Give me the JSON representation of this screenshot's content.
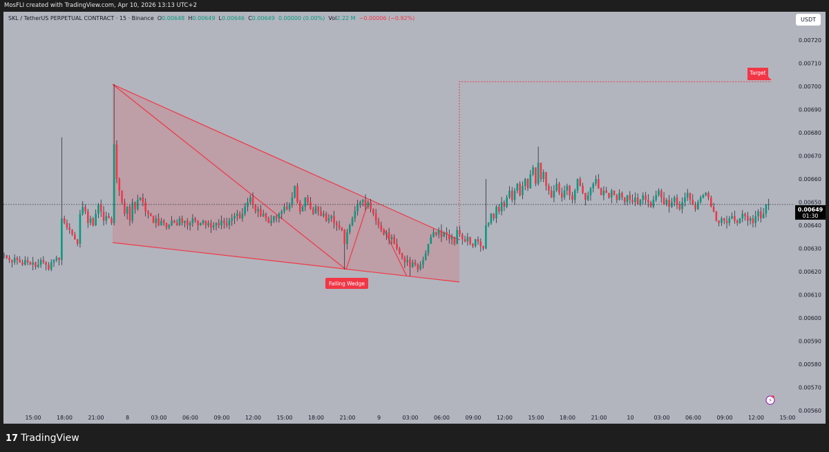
{
  "header": {
    "attribution": "MosFLI created with TradingView.com, Apr 10, 2026 13:13 UTC+2"
  },
  "legend": {
    "symbol": "SKL / TetherUS PERPETUAL CONTRACT · 15 · Binance",
    "o_label": "O",
    "o": "0.00648",
    "h_label": "H",
    "h": "0.00649",
    "l_label": "L",
    "l": "0.00646",
    "c_label": "C",
    "c": "0.00649",
    "change": "0.00000 (0.00%)",
    "vol_label": "Vol",
    "vol": "2.22 M",
    "change2": "−0.00006 (−0.92%)"
  },
  "price_axis": {
    "unit": "USDT",
    "current_price": "0.00649",
    "countdown": "01:30"
  },
  "footer": {
    "brand": "TradingView"
  },
  "colors": {
    "up": "#089981",
    "down": "#f23645",
    "drawing": "#f23645",
    "background": "#b2b5be"
  },
  "icons": {
    "alert": "lightning-alert-icon",
    "logo": "tradingview-logo-icon"
  },
  "chart_data": {
    "type": "candlestick",
    "interval": "15",
    "y_ticks": [
      "0.00720",
      "0.00710",
      "0.00700",
      "0.00690",
      "0.00680",
      "0.00670",
      "0.00660",
      "0.00650",
      "0.00640",
      "0.00630",
      "0.00620",
      "0.00610",
      "0.00600",
      "0.00590",
      "0.00580",
      "0.00570",
      "0.00560"
    ],
    "ylim": [
      0.0056,
      0.0072
    ],
    "x_ticks": [
      "15:00",
      "18:00",
      "21:00",
      "8",
      "03:00",
      "06:00",
      "09:00",
      "12:00",
      "15:00",
      "18:00",
      "21:00",
      "9",
      "03:00",
      "06:00",
      "09:00",
      "12:00",
      "15:00",
      "18:00",
      "21:00",
      "10",
      "03:00",
      "06:00",
      "09:00",
      "12:00",
      "15:00"
    ],
    "closes": [
      0.00627,
      0.00626,
      0.00625,
      0.00624,
      0.00626,
      0.00625,
      0.00624,
      0.00623,
      0.00625,
      0.00624,
      0.00623,
      0.00624,
      0.00622,
      0.00623,
      0.00625,
      0.00624,
      0.00623,
      0.00621,
      0.00624,
      0.00625,
      0.00626,
      0.00625,
      0.00643,
      0.00641,
      0.00639,
      0.00638,
      0.00636,
      0.00634,
      0.00632,
      0.00645,
      0.00648,
      0.00646,
      0.00641,
      0.00643,
      0.0064,
      0.00645,
      0.00649,
      0.00646,
      0.00642,
      0.00644,
      0.00643,
      0.00641,
      0.00675,
      0.0066,
      0.00655,
      0.0065,
      0.00645,
      0.00648,
      0.00642,
      0.0065,
      0.00647,
      0.00651,
      0.00652,
      0.0065,
      0.00646,
      0.00645,
      0.00644,
      0.00641,
      0.00643,
      0.0064,
      0.00642,
      0.00641,
      0.00639,
      0.0064,
      0.00642,
      0.00641,
      0.0064,
      0.00643,
      0.00641,
      0.00642,
      0.0064,
      0.00641,
      0.00643,
      0.00642,
      0.0064,
      0.00641,
      0.00642,
      0.0064,
      0.00641,
      0.00639,
      0.0064,
      0.00641,
      0.0064,
      0.00642,
      0.00641,
      0.0064,
      0.00642,
      0.00643,
      0.00644,
      0.00645,
      0.00643,
      0.00645,
      0.00648,
      0.0065,
      0.00652,
      0.00649,
      0.00646,
      0.00647,
      0.00644,
      0.00645,
      0.00643,
      0.00641,
      0.00642,
      0.00644,
      0.00643,
      0.00645,
      0.00646,
      0.00648,
      0.00647,
      0.00649,
      0.00652,
      0.00657,
      0.0065,
      0.00646,
      0.00648,
      0.00652,
      0.0065,
      0.00647,
      0.00645,
      0.00648,
      0.00646,
      0.00644,
      0.00645,
      0.00642,
      0.00643,
      0.00644,
      0.00641,
      0.0064,
      0.00639,
      0.00638,
      0.00632,
      0.00637,
      0.0064,
      0.00643,
      0.00646,
      0.00649,
      0.0065,
      0.00651,
      0.00648,
      0.0065,
      0.00647,
      0.00645,
      0.00642,
      0.0064,
      0.00638,
      0.00636,
      0.00637,
      0.00634,
      0.00635,
      0.00632,
      0.0063,
      0.00628,
      0.00626,
      0.00624,
      0.00625,
      0.00622,
      0.00624,
      0.00623,
      0.00621,
      0.00623,
      0.00625,
      0.00628,
      0.00632,
      0.00635,
      0.00637,
      0.00636,
      0.00638,
      0.00635,
      0.00637,
      0.00636,
      0.00634,
      0.00635,
      0.00632,
      0.00638,
      0.00636,
      0.00634,
      0.00633,
      0.00635,
      0.00632,
      0.00631,
      0.00634,
      0.00633,
      0.00631,
      0.0063,
      0.0064,
      0.00641,
      0.00645,
      0.00643,
      0.00648,
      0.00646,
      0.0065,
      0.00648,
      0.00652,
      0.00655,
      0.00651,
      0.00655,
      0.00658,
      0.00653,
      0.00657,
      0.0066,
      0.00656,
      0.00662,
      0.00665,
      0.00658,
      0.00667,
      0.0066,
      0.00663,
      0.00657,
      0.00655,
      0.00652,
      0.00655,
      0.00658,
      0.00654,
      0.00652,
      0.00655,
      0.00657,
      0.00653,
      0.00651,
      0.00655,
      0.0066,
      0.00657,
      0.00654,
      0.00651,
      0.00653,
      0.00656,
      0.00658,
      0.0066,
      0.00656,
      0.00653,
      0.00655,
      0.00654,
      0.00652,
      0.00655,
      0.00653,
      0.00651,
      0.00654,
      0.00652,
      0.0065,
      0.00653,
      0.00651,
      0.0065,
      0.00652,
      0.00649,
      0.00651,
      0.00653,
      0.00651,
      0.0065,
      0.00648,
      0.00651,
      0.00653,
      0.00655,
      0.00652,
      0.00649,
      0.00651,
      0.00648,
      0.0065,
      0.00652,
      0.00649,
      0.00647,
      0.0065,
      0.00652,
      0.00654,
      0.00651,
      0.00649,
      0.00647,
      0.0065,
      0.00652,
      0.00653,
      0.00654,
      0.00652,
      0.00648,
      0.00646,
      0.00642,
      0.00641,
      0.00643,
      0.00642,
      0.00641,
      0.00643,
      0.00644,
      0.00642,
      0.00641,
      0.00643,
      0.00645,
      0.00644,
      0.00642,
      0.00643,
      0.00641,
      0.00644,
      0.00646,
      0.00643,
      0.00645,
      0.00649,
      0.00649
    ],
    "wick_extremes": [
      {
        "index": 22,
        "high": 0.00678
      },
      {
        "index": 42,
        "high": 0.00701
      },
      {
        "index": 130,
        "low": 0.00621
      },
      {
        "index": 155,
        "low": 0.00618
      },
      {
        "index": 184,
        "high": 0.0066
      },
      {
        "index": 204,
        "high": 0.00674
      }
    ],
    "last_price": 0.00649,
    "annotations": {
      "pattern_label": "Falling Wedge",
      "target_label": "Target",
      "target_price": 0.00702
    }
  }
}
